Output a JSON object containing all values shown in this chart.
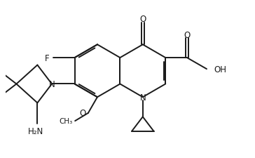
{
  "background": "#ffffff",
  "line_color": "#1a1a1a",
  "line_width": 1.4,
  "font_size": 8.5,
  "fig_width": 3.64,
  "fig_height": 2.26,
  "dpi": 100,
  "xlim": [
    -3.5,
    5.8
  ],
  "ylim": [
    -2.8,
    3.2
  ]
}
